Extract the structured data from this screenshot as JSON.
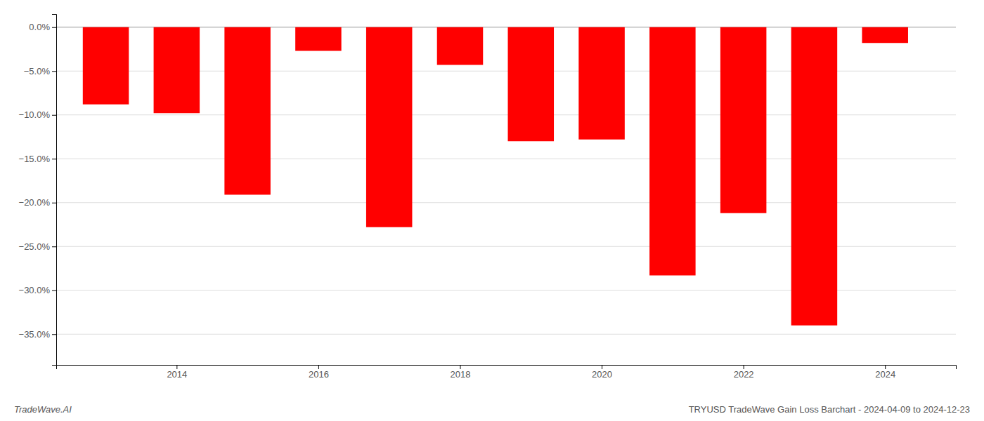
{
  "chart_data": {
    "type": "bar",
    "title": "TRYUSD TradeWave Gain Loss Barchart - 2024-04-09 to 2024-12-23",
    "annotations": [
      "TradeWave.AI"
    ],
    "x": [
      2013,
      2014,
      2015,
      2016,
      2017,
      2018,
      2019,
      2020,
      2021,
      2022,
      2023,
      2024
    ],
    "values": [
      -0.088,
      -0.098,
      -0.191,
      -0.027,
      -0.228,
      -0.043,
      -0.13,
      -0.128,
      -0.283,
      -0.212,
      -0.34,
      -0.018
    ],
    "color": "#ff0000",
    "xlim": [
      2012.3,
      2025.0
    ],
    "xticks": [
      2014,
      2016,
      2018,
      2020,
      2022,
      2024
    ],
    "ylim": [
      -0.385,
      0.015
    ],
    "yticks": [
      {
        "value": 0.0,
        "label": "0.0%"
      },
      {
        "value": -0.05,
        "label": "−5.0%"
      },
      {
        "value": -0.1,
        "label": "−10.0%"
      },
      {
        "value": -0.15,
        "label": "−15.0%"
      },
      {
        "value": -0.2,
        "label": "−20.0%"
      },
      {
        "value": -0.25,
        "label": "−25.0%"
      },
      {
        "value": -0.3,
        "label": "−30.0%"
      },
      {
        "value": -0.35,
        "label": "−35.0%"
      }
    ],
    "grid": true
  }
}
